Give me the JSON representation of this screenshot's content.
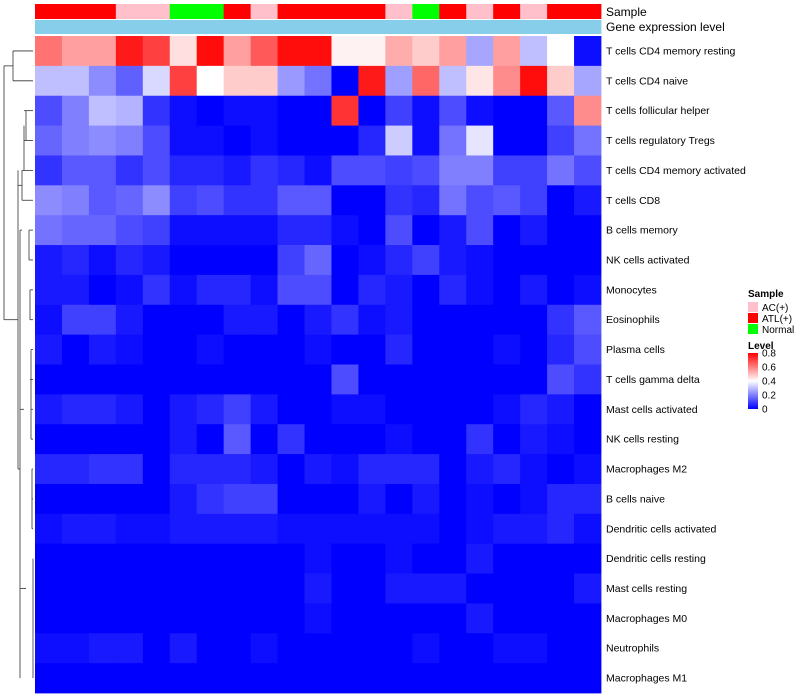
{
  "chart_data": {
    "type": "heatmap",
    "title": "",
    "value_range": [
      0,
      0.8
    ],
    "annotation_titles": {
      "sample": "Sample",
      "expression": "Gene expression level"
    },
    "columns_sample": [
      "ATL(+)",
      "ATL(+)",
      "ATL(+)",
      "AC(+)",
      "AC(+)",
      "Normal",
      "Normal",
      "ATL(+)",
      "AC(+)",
      "ATL(+)",
      "ATL(+)",
      "ATL(+)",
      "ATL(+)",
      "AC(+)",
      "Normal",
      "ATL(+)",
      "AC(+)",
      "ATL(+)",
      "AC(+)",
      "ATL(+)",
      "ATL(+)"
    ],
    "rows": [
      "T cells CD4 memory resting",
      "T cells CD4 naive",
      "T cells follicular helper",
      "T cells regulatory  Tregs",
      "T cells CD4 memory activated",
      "T cells CD8",
      "B cells memory",
      "NK cells activated",
      "Monocytes",
      "Eosinophils",
      "Plasma cells",
      "T cells gamma delta",
      "Mast cells activated",
      "NK cells resting",
      "Macrophages M2",
      "B cells naive",
      "Dendritic cells activated",
      "Dendritic cells resting",
      "Mast cells resting",
      "Macrophages M0",
      "Neutrophils",
      "Macrophages M1"
    ],
    "values": [
      [
        0.62,
        0.55,
        0.55,
        0.76,
        0.7,
        0.45,
        0.78,
        0.55,
        0.66,
        0.78,
        0.78,
        0.42,
        0.42,
        0.53,
        0.48,
        0.55,
        0.26,
        0.55,
        0.3,
        0.4,
        0.02
      ],
      [
        0.3,
        0.3,
        0.22,
        0.15,
        0.34,
        0.7,
        0.4,
        0.48,
        0.48,
        0.24,
        0.18,
        0.0,
        0.76,
        0.25,
        0.64,
        0.3,
        0.44,
        0.58,
        0.78,
        0.48,
        0.26
      ],
      [
        0.12,
        0.2,
        0.3,
        0.28,
        0.08,
        0.02,
        0.0,
        0.02,
        0.02,
        0.0,
        0.0,
        0.72,
        0.0,
        0.1,
        0.02,
        0.12,
        0.02,
        0.0,
        0.0,
        0.14,
        0.58
      ],
      [
        0.16,
        0.2,
        0.22,
        0.2,
        0.12,
        0.02,
        0.02,
        0.0,
        0.02,
        0.0,
        0.0,
        0.0,
        0.06,
        0.32,
        0.02,
        0.18,
        0.36,
        0.0,
        0.0,
        0.1,
        0.18
      ],
      [
        0.08,
        0.14,
        0.14,
        0.08,
        0.12,
        0.06,
        0.06,
        0.04,
        0.08,
        0.06,
        0.02,
        0.12,
        0.12,
        0.1,
        0.12,
        0.2,
        0.2,
        0.1,
        0.1,
        0.18,
        0.12
      ],
      [
        0.22,
        0.2,
        0.14,
        0.16,
        0.22,
        0.1,
        0.12,
        0.08,
        0.08,
        0.14,
        0.14,
        0.0,
        0.0,
        0.08,
        0.06,
        0.18,
        0.12,
        0.14,
        0.1,
        0.0,
        0.04
      ],
      [
        0.18,
        0.16,
        0.16,
        0.12,
        0.1,
        0.02,
        0.02,
        0.02,
        0.02,
        0.06,
        0.06,
        0.02,
        0.0,
        0.12,
        0.0,
        0.04,
        0.12,
        0.0,
        0.04,
        0.0,
        0.0
      ],
      [
        0.04,
        0.06,
        0.02,
        0.06,
        0.04,
        0.0,
        0.0,
        0.0,
        0.0,
        0.1,
        0.16,
        0.0,
        0.02,
        0.06,
        0.1,
        0.04,
        0.02,
        0.0,
        0.0,
        0.0,
        0.0
      ],
      [
        0.04,
        0.04,
        0.0,
        0.02,
        0.08,
        0.02,
        0.06,
        0.06,
        0.02,
        0.12,
        0.12,
        0.0,
        0.06,
        0.04,
        0.0,
        0.06,
        0.02,
        0.0,
        0.04,
        0.0,
        0.02
      ],
      [
        0.02,
        0.1,
        0.1,
        0.04,
        0.0,
        0.0,
        0.0,
        0.04,
        0.04,
        0.0,
        0.04,
        0.08,
        0.02,
        0.04,
        0.0,
        0.0,
        0.0,
        0.0,
        0.0,
        0.08,
        0.14
      ],
      [
        0.04,
        0.0,
        0.04,
        0.02,
        0.0,
        0.0,
        0.02,
        0.0,
        0.0,
        0.0,
        0.02,
        0.0,
        0.0,
        0.06,
        0.0,
        0.0,
        0.0,
        0.02,
        0.0,
        0.06,
        0.12
      ],
      [
        0.0,
        0.0,
        0.0,
        0.0,
        0.0,
        0.0,
        0.0,
        0.0,
        0.0,
        0.0,
        0.0,
        0.12,
        0.0,
        0.0,
        0.0,
        0.0,
        0.0,
        0.0,
        0.0,
        0.12,
        0.08
      ],
      [
        0.04,
        0.06,
        0.06,
        0.04,
        0.0,
        0.04,
        0.06,
        0.1,
        0.04,
        0.0,
        0.0,
        0.02,
        0.02,
        0.0,
        0.0,
        0.0,
        0.0,
        0.02,
        0.06,
        0.04,
        0.0
      ],
      [
        0.0,
        0.0,
        0.0,
        0.0,
        0.0,
        0.04,
        0.0,
        0.14,
        0.0,
        0.08,
        0.0,
        0.0,
        0.0,
        0.02,
        0.0,
        0.0,
        0.08,
        0.0,
        0.04,
        0.02,
        0.0
      ],
      [
        0.06,
        0.06,
        0.08,
        0.08,
        0.0,
        0.06,
        0.06,
        0.06,
        0.04,
        0.0,
        0.04,
        0.02,
        0.06,
        0.06,
        0.06,
        0.0,
        0.04,
        0.06,
        0.02,
        0.0,
        0.02
      ],
      [
        0.0,
        0.0,
        0.0,
        0.0,
        0.0,
        0.04,
        0.08,
        0.1,
        0.1,
        0.0,
        0.0,
        0.0,
        0.04,
        0.0,
        0.04,
        0.0,
        0.02,
        0.0,
        0.02,
        0.06,
        0.06
      ],
      [
        0.02,
        0.04,
        0.04,
        0.02,
        0.02,
        0.04,
        0.04,
        0.04,
        0.04,
        0.02,
        0.02,
        0.02,
        0.02,
        0.02,
        0.02,
        0.0,
        0.02,
        0.04,
        0.04,
        0.06,
        0.02
      ],
      [
        0.0,
        0.0,
        0.0,
        0.0,
        0.0,
        0.0,
        0.0,
        0.0,
        0.0,
        0.0,
        0.02,
        0.0,
        0.0,
        0.02,
        0.0,
        0.0,
        0.04,
        0.0,
        0.0,
        0.0,
        0.0
      ],
      [
        0.0,
        0.0,
        0.0,
        0.0,
        0.0,
        0.0,
        0.0,
        0.0,
        0.0,
        0.0,
        0.04,
        0.0,
        0.0,
        0.04,
        0.04,
        0.04,
        0.0,
        0.0,
        0.0,
        0.0,
        0.04
      ],
      [
        0.0,
        0.0,
        0.0,
        0.0,
        0.0,
        0.0,
        0.0,
        0.0,
        0.0,
        0.0,
        0.02,
        0.0,
        0.0,
        0.0,
        0.0,
        0.0,
        0.04,
        0.0,
        0.0,
        0.0,
        0.0
      ],
      [
        0.02,
        0.02,
        0.04,
        0.04,
        0.0,
        0.04,
        0.0,
        0.0,
        0.02,
        0.0,
        0.0,
        0.0,
        0.0,
        0.0,
        0.02,
        0.0,
        0.0,
        0.02,
        0.02,
        0.0,
        0.0
      ],
      [
        0.0,
        0.0,
        0.0,
        0.0,
        0.0,
        0.0,
        0.0,
        0.0,
        0.0,
        0.0,
        0.0,
        0.0,
        0.0,
        0.0,
        0.0,
        0.0,
        0.0,
        0.0,
        0.0,
        0.0,
        0.0
      ]
    ],
    "expression_bar_color": "#87CEEB",
    "color_scale": {
      "low": "#0000FF",
      "mid": "#FFFFFF",
      "high": "#FF0000",
      "midpoint": 0.4
    },
    "legend_sample": {
      "title": "Sample",
      "items": [
        {
          "label": "AC(+)",
          "color": "#FFC0CB"
        },
        {
          "label": "ATL(+)",
          "color": "#FF0000"
        },
        {
          "label": "Normal",
          "color": "#00FF00"
        }
      ]
    },
    "legend_level": {
      "title": "Level",
      "ticks": [
        "0.8",
        "0.6",
        "0.4",
        "0.2",
        "0"
      ],
      "tick_values": [
        0.8,
        0.6,
        0.4,
        0.2,
        0
      ]
    },
    "row_dendrogram": true
  }
}
